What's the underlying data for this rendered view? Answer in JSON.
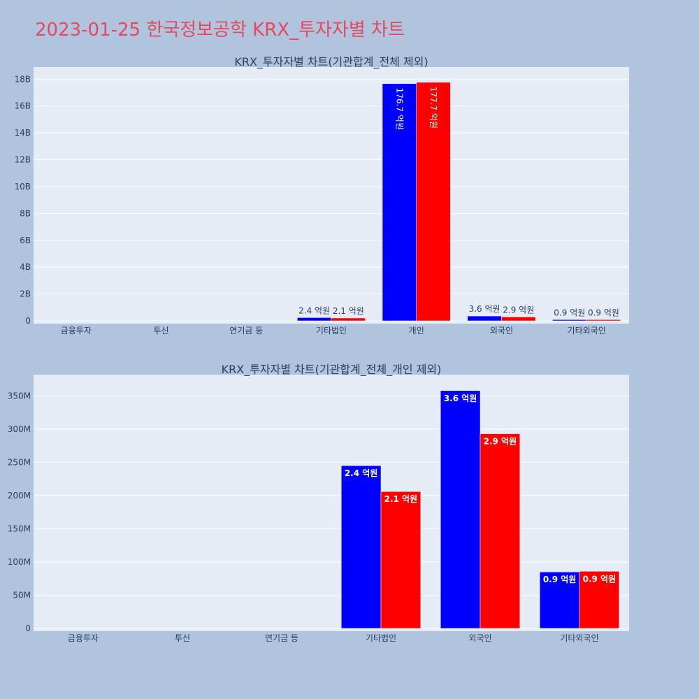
{
  "page_title": "2023-01-25 한국정보공학 KRX_투자자별 차트",
  "colors": {
    "background": "#b0c4de",
    "title": "#e8475f",
    "series1": "#0000ff",
    "series2": "#ff0000"
  },
  "chart_data": [
    {
      "type": "bar",
      "title": "KRX_투자자별 차트(기관합계_전체 제외)",
      "categories": [
        "금융투자",
        "투신",
        "연기금 등",
        "기타법인",
        "개인",
        "외국인",
        "기타외국인"
      ],
      "series": [
        {
          "color": "#0000ff",
          "values": [
            0,
            0,
            0,
            240000000,
            17670000000,
            360000000,
            90000000
          ],
          "labels": [
            "",
            "",
            "",
            "2.4 억원",
            "176.7 억원",
            "3.6 억원",
            "0.9 억원"
          ]
        },
        {
          "color": "#ff0000",
          "values": [
            0,
            0,
            0,
            210000000,
            17770000000,
            290000000,
            90000000
          ],
          "labels": [
            "",
            "",
            "",
            "2.1 억원",
            "177.7 억원",
            "2.9 억원",
            "0.9 억원"
          ]
        }
      ],
      "yticks": [
        0,
        2000000000,
        4000000000,
        6000000000,
        8000000000,
        10000000000,
        12000000000,
        14000000000,
        16000000000,
        18000000000
      ],
      "ytick_labels": [
        "0",
        "2B",
        "4B",
        "6B",
        "8B",
        "10B",
        "12B",
        "14B",
        "16B",
        "18B"
      ],
      "ylim": [
        0,
        18900000000
      ],
      "grid": true
    },
    {
      "type": "bar",
      "title": "KRX_투자자별 차트(기관합계_전체_개인 제외)",
      "categories": [
        "금융투자",
        "투신",
        "연기금 등",
        "기타법인",
        "외국인",
        "기타외국인"
      ],
      "series": [
        {
          "color": "#0000ff",
          "values": [
            0,
            0,
            0,
            245000000,
            358000000,
            85000000
          ],
          "labels": [
            "",
            "",
            "",
            "2.4 억원",
            "3.6 억원",
            "0.9 억원"
          ]
        },
        {
          "color": "#ff0000",
          "values": [
            0,
            0,
            0,
            206000000,
            293000000,
            86000000
          ],
          "labels": [
            "",
            "",
            "",
            "2.1 억원",
            "2.9 억원",
            "0.9 억원"
          ]
        }
      ],
      "yticks": [
        0,
        50000000,
        100000000,
        150000000,
        200000000,
        250000000,
        300000000,
        350000000
      ],
      "ytick_labels": [
        "0",
        "50M",
        "100M",
        "150M",
        "200M",
        "250M",
        "300M",
        "350M"
      ],
      "ylim": [
        0,
        382000000
      ],
      "grid": true
    }
  ]
}
